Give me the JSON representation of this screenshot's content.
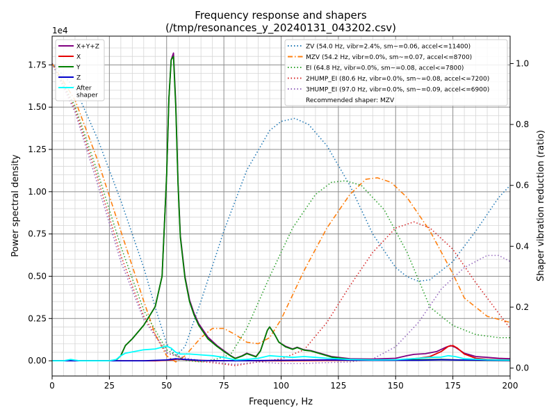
{
  "chart_data": {
    "type": "line",
    "title": "Frequency response and shapers",
    "subtitle": "(/tmp/resonances_y_20240131_043202.csv)",
    "xlabel": "Frequency, Hz",
    "ylabel": "Power spectral density",
    "y2label": "Shaper vibration reduction (ratio)",
    "y_offset_label": "1e4",
    "xlim": [
      0,
      200
    ],
    "ylim": [
      -900,
      19200
    ],
    "y2lim": [
      -0.026,
      1.09
    ],
    "x_ticks": [
      "0",
      "25",
      "50",
      "75",
      "100",
      "125",
      "150",
      "175",
      "200"
    ],
    "y_ticks": [
      "0.00",
      "0.25",
      "0.50",
      "0.75",
      "1.00",
      "1.25",
      "1.50",
      "1.75"
    ],
    "y2_ticks": [
      "0.0",
      "0.2",
      "0.4",
      "0.6",
      "0.8",
      "1.0"
    ],
    "grid": true,
    "legend_left_placement": "top-left",
    "legend_right_placement": "top-right",
    "psd_series": [
      {
        "name": "X+Y+Z",
        "color": "#800080",
        "dash": "solid",
        "points": [
          [
            0,
            0
          ],
          [
            25,
            0
          ],
          [
            28,
            50
          ],
          [
            30,
            300
          ],
          [
            32,
            900
          ],
          [
            35,
            1300
          ],
          [
            40,
            2100
          ],
          [
            45,
            3200
          ],
          [
            48,
            5000
          ],
          [
            50,
            11000
          ],
          [
            51,
            15500
          ],
          [
            52,
            17800
          ],
          [
            53,
            18200
          ],
          [
            54,
            15200
          ],
          [
            55,
            10500
          ],
          [
            56,
            7400
          ],
          [
            58,
            5000
          ],
          [
            60,
            3600
          ],
          [
            62,
            2800
          ],
          [
            64,
            2200
          ],
          [
            68,
            1400
          ],
          [
            72,
            900
          ],
          [
            75,
            600
          ],
          [
            78,
            300
          ],
          [
            80,
            150
          ],
          [
            83,
            300
          ],
          [
            85,
            450
          ],
          [
            87,
            350
          ],
          [
            89,
            250
          ],
          [
            91,
            600
          ],
          [
            94,
            1800
          ],
          [
            95,
            2000
          ],
          [
            97,
            1600
          ],
          [
            99,
            1100
          ],
          [
            102,
            850
          ],
          [
            105,
            700
          ],
          [
            107,
            800
          ],
          [
            110,
            650
          ],
          [
            113,
            600
          ],
          [
            117,
            450
          ],
          [
            122,
            250
          ],
          [
            130,
            120
          ],
          [
            140,
            100
          ],
          [
            150,
            150
          ],
          [
            155,
            300
          ],
          [
            158,
            380
          ],
          [
            163,
            420
          ],
          [
            168,
            550
          ],
          [
            172,
            800
          ],
          [
            174,
            900
          ],
          [
            176,
            800
          ],
          [
            180,
            450
          ],
          [
            185,
            250
          ],
          [
            190,
            200
          ],
          [
            195,
            150
          ],
          [
            200,
            120
          ]
        ]
      },
      {
        "name": "X",
        "color": "#e50000",
        "dash": "solid",
        "points": [
          [
            0,
            0
          ],
          [
            45,
            0
          ],
          [
            52,
            50
          ],
          [
            55,
            100
          ],
          [
            60,
            50
          ],
          [
            70,
            0
          ],
          [
            100,
            0
          ],
          [
            150,
            50
          ],
          [
            160,
            150
          ],
          [
            165,
            250
          ],
          [
            170,
            550
          ],
          [
            173,
            850
          ],
          [
            175,
            900
          ],
          [
            177,
            750
          ],
          [
            180,
            400
          ],
          [
            185,
            150
          ],
          [
            190,
            80
          ],
          [
            200,
            50
          ]
        ]
      },
      {
        "name": "Y",
        "color": "#008000",
        "dash": "solid",
        "points": [
          [
            0,
            0
          ],
          [
            25,
            0
          ],
          [
            28,
            50
          ],
          [
            30,
            300
          ],
          [
            32,
            900
          ],
          [
            35,
            1300
          ],
          [
            40,
            2100
          ],
          [
            45,
            3200
          ],
          [
            48,
            5000
          ],
          [
            50,
            11000
          ],
          [
            51,
            15500
          ],
          [
            52,
            17800
          ],
          [
            53,
            18000
          ],
          [
            54,
            15000
          ],
          [
            55,
            10400
          ],
          [
            56,
            7300
          ],
          [
            58,
            4900
          ],
          [
            60,
            3500
          ],
          [
            62,
            2700
          ],
          [
            64,
            2100
          ],
          [
            68,
            1300
          ],
          [
            72,
            850
          ],
          [
            75,
            550
          ],
          [
            78,
            280
          ],
          [
            80,
            130
          ],
          [
            83,
            280
          ],
          [
            85,
            420
          ],
          [
            87,
            330
          ],
          [
            89,
            230
          ],
          [
            91,
            580
          ],
          [
            94,
            1800
          ],
          [
            95,
            2000
          ],
          [
            97,
            1600
          ],
          [
            99,
            1100
          ],
          [
            102,
            820
          ],
          [
            105,
            680
          ],
          [
            107,
            780
          ],
          [
            110,
            630
          ],
          [
            113,
            580
          ],
          [
            117,
            420
          ],
          [
            122,
            220
          ],
          [
            130,
            80
          ],
          [
            140,
            50
          ],
          [
            150,
            50
          ],
          [
            160,
            60
          ],
          [
            170,
            80
          ],
          [
            180,
            40
          ],
          [
            190,
            20
          ],
          [
            200,
            10
          ]
        ]
      },
      {
        "name": "Z",
        "color": "#0000cc",
        "dash": "solid",
        "points": [
          [
            0,
            0
          ],
          [
            40,
            0
          ],
          [
            50,
            50
          ],
          [
            54,
            120
          ],
          [
            58,
            80
          ],
          [
            65,
            20
          ],
          [
            80,
            0
          ],
          [
            100,
            30
          ],
          [
            120,
            50
          ],
          [
            140,
            30
          ],
          [
            160,
            30
          ],
          [
            170,
            60
          ],
          [
            180,
            40
          ],
          [
            200,
            20
          ]
        ]
      },
      {
        "name": "After\nshaper",
        "color": "#00ffff",
        "dash": "solid",
        "points": [
          [
            0,
            0
          ],
          [
            5,
            0
          ],
          [
            8,
            80
          ],
          [
            12,
            0
          ],
          [
            25,
            0
          ],
          [
            28,
            80
          ],
          [
            30,
            300
          ],
          [
            32,
            450
          ],
          [
            36,
            550
          ],
          [
            40,
            650
          ],
          [
            45,
            700
          ],
          [
            50,
            870
          ],
          [
            52,
            750
          ],
          [
            54,
            500
          ],
          [
            56,
            400
          ],
          [
            60,
            400
          ],
          [
            65,
            350
          ],
          [
            70,
            300
          ],
          [
            75,
            200
          ],
          [
            80,
            50
          ],
          [
            85,
            80
          ],
          [
            90,
            150
          ],
          [
            95,
            300
          ],
          [
            100,
            250
          ],
          [
            105,
            200
          ],
          [
            110,
            250
          ],
          [
            115,
            200
          ],
          [
            120,
            150
          ],
          [
            130,
            80
          ],
          [
            140,
            50
          ],
          [
            150,
            60
          ],
          [
            160,
            150
          ],
          [
            165,
            200
          ],
          [
            170,
            220
          ],
          [
            173,
            300
          ],
          [
            176,
            250
          ],
          [
            180,
            120
          ],
          [
            190,
            60
          ],
          [
            200,
            40
          ]
        ]
      }
    ],
    "shaper_series": [
      {
        "name": "ZV (54.0 Hz, vibr=2.4%, sm~=0.06, accel<=11400)",
        "color": "#1f77b4",
        "dash": "dotted",
        "points": [
          [
            0,
            1.0
          ],
          [
            10,
            0.92
          ],
          [
            20,
            0.75
          ],
          [
            30,
            0.55
          ],
          [
            40,
            0.33
          ],
          [
            45,
            0.2
          ],
          [
            50,
            0.08
          ],
          [
            54,
            0.04
          ],
          [
            58,
            0.07
          ],
          [
            65,
            0.22
          ],
          [
            75,
            0.45
          ],
          [
            85,
            0.65
          ],
          [
            95,
            0.78
          ],
          [
            100,
            0.81
          ],
          [
            106,
            0.82
          ],
          [
            112,
            0.8
          ],
          [
            120,
            0.73
          ],
          [
            130,
            0.6
          ],
          [
            140,
            0.44
          ],
          [
            150,
            0.33
          ],
          [
            155,
            0.3
          ],
          [
            160,
            0.285
          ],
          [
            165,
            0.29
          ],
          [
            175,
            0.35
          ],
          [
            185,
            0.45
          ],
          [
            195,
            0.56
          ],
          [
            200,
            0.6
          ]
        ]
      },
      {
        "name": "MZV (54.2 Hz, vibr=0.0%, sm~=0.07, accel<=8700)",
        "color": "#ff7f0e",
        "dash": "dashdot",
        "points": [
          [
            0,
            1.0
          ],
          [
            10,
            0.88
          ],
          [
            20,
            0.68
          ],
          [
            30,
            0.45
          ],
          [
            40,
            0.22
          ],
          [
            45,
            0.11
          ],
          [
            50,
            0.04
          ],
          [
            54,
            0.02
          ],
          [
            58,
            0.04
          ],
          [
            65,
            0.1
          ],
          [
            70,
            0.13
          ],
          [
            75,
            0.13
          ],
          [
            80,
            0.11
          ],
          [
            85,
            0.085
          ],
          [
            90,
            0.08
          ],
          [
            95,
            0.1
          ],
          [
            100,
            0.16
          ],
          [
            110,
            0.32
          ],
          [
            120,
            0.46
          ],
          [
            130,
            0.57
          ],
          [
            137,
            0.62
          ],
          [
            142,
            0.625
          ],
          [
            148,
            0.61
          ],
          [
            155,
            0.56
          ],
          [
            165,
            0.45
          ],
          [
            175,
            0.31
          ],
          [
            180,
            0.23
          ],
          [
            185,
            0.2
          ],
          [
            190,
            0.17
          ],
          [
            200,
            0.15
          ]
        ]
      },
      {
        "name": "EI (64.8 Hz, vibr=0.0%, sm~=0.08, accel<=7800)",
        "color": "#2ca02c",
        "dash": "dotted",
        "points": [
          [
            0,
            1.0
          ],
          [
            10,
            0.86
          ],
          [
            20,
            0.64
          ],
          [
            30,
            0.4
          ],
          [
            40,
            0.19
          ],
          [
            50,
            0.06
          ],
          [
            58,
            0.025
          ],
          [
            65,
            0.02
          ],
          [
            72,
            0.03
          ],
          [
            78,
            0.045
          ],
          [
            85,
            0.13
          ],
          [
            95,
            0.3
          ],
          [
            105,
            0.46
          ],
          [
            115,
            0.57
          ],
          [
            122,
            0.61
          ],
          [
            128,
            0.615
          ],
          [
            135,
            0.6
          ],
          [
            145,
            0.52
          ],
          [
            155,
            0.38
          ],
          [
            165,
            0.2
          ],
          [
            175,
            0.14
          ],
          [
            185,
            0.11
          ],
          [
            195,
            0.1
          ],
          [
            200,
            0.1
          ]
        ]
      },
      {
        "name": "2HUMP_EI (80.6 Hz, vibr=0.0%, sm~=0.08, accel<=7200)",
        "color": "#d62728",
        "dash": "dotted",
        "points": [
          [
            0,
            1.0
          ],
          [
            10,
            0.85
          ],
          [
            20,
            0.62
          ],
          [
            30,
            0.37
          ],
          [
            40,
            0.17
          ],
          [
            50,
            0.05
          ],
          [
            60,
            0.025
          ],
          [
            70,
            0.018
          ],
          [
            80,
            0.008
          ],
          [
            90,
            0.02
          ],
          [
            100,
            0.03
          ],
          [
            110,
            0.06
          ],
          [
            120,
            0.15
          ],
          [
            130,
            0.27
          ],
          [
            140,
            0.38
          ],
          [
            150,
            0.46
          ],
          [
            158,
            0.48
          ],
          [
            165,
            0.46
          ],
          [
            175,
            0.39
          ],
          [
            185,
            0.28
          ],
          [
            195,
            0.18
          ],
          [
            200,
            0.13
          ]
        ]
      },
      {
        "name": "3HUMP_EI (97.0 Hz, vibr=0.0%, sm~=0.09, accel<=6900)",
        "color": "#9467bd",
        "dash": "dotted",
        "points": [
          [
            0,
            1.0
          ],
          [
            10,
            0.84
          ],
          [
            20,
            0.6
          ],
          [
            30,
            0.35
          ],
          [
            40,
            0.16
          ],
          [
            50,
            0.05
          ],
          [
            60,
            0.03
          ],
          [
            70,
            0.02
          ],
          [
            80,
            0.012
          ],
          [
            90,
            0.02
          ],
          [
            100,
            0.015
          ],
          [
            110,
            0.015
          ],
          [
            120,
            0.018
          ],
          [
            130,
            0.02
          ],
          [
            140,
            0.03
          ],
          [
            150,
            0.07
          ],
          [
            160,
            0.15
          ],
          [
            170,
            0.26
          ],
          [
            180,
            0.33
          ],
          [
            190,
            0.37
          ],
          [
            195,
            0.37
          ],
          [
            200,
            0.35
          ]
        ]
      }
    ],
    "recommended_label": "Recommended shaper: MZV"
  }
}
